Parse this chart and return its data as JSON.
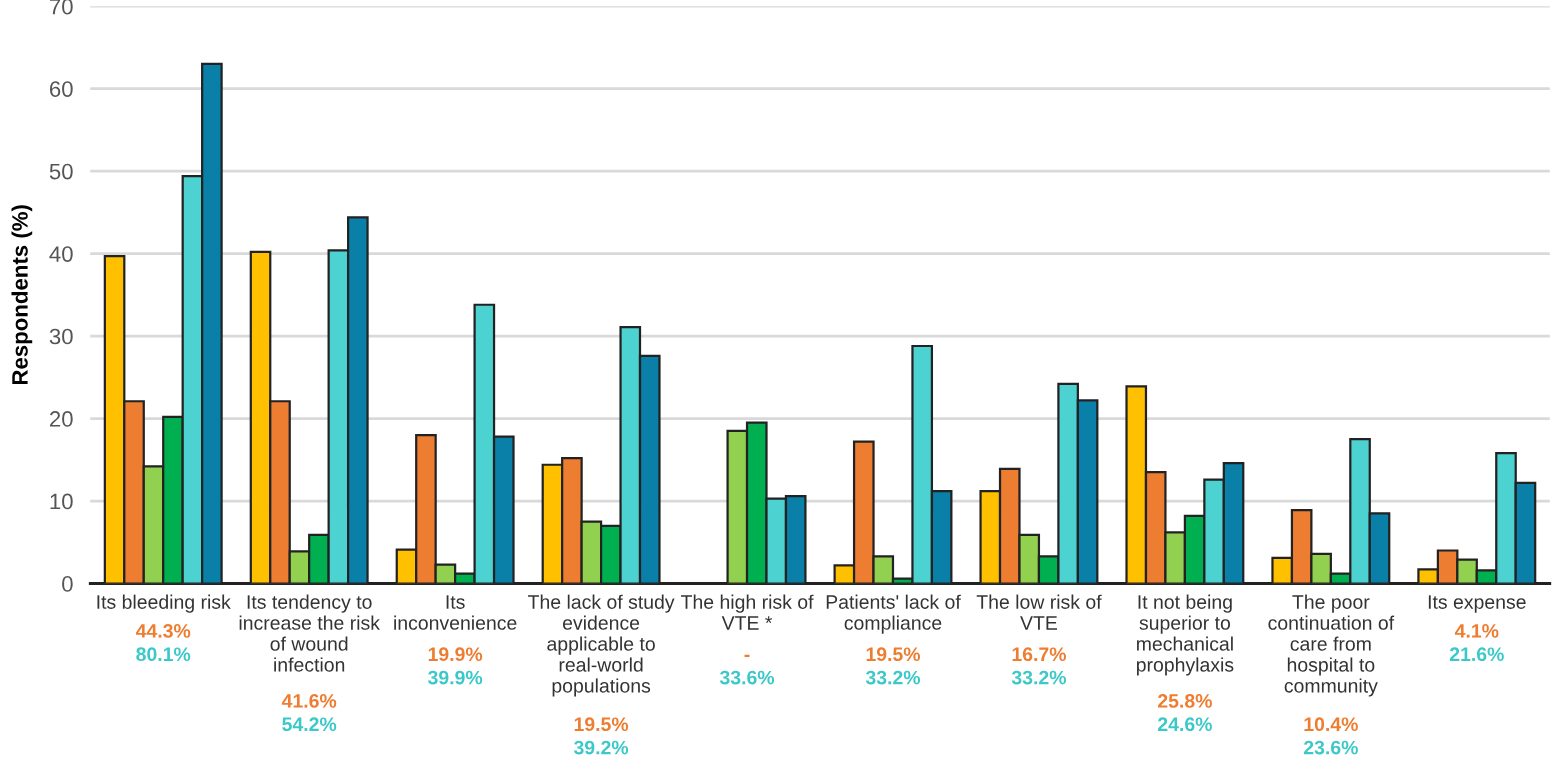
{
  "chart_data": {
    "type": "bar",
    "ylabel": "Respondents (%)",
    "categories": [
      "Its bleeding risk",
      "Its tendency to\nincrease the risk\nof wound\ninfection",
      "Its\ninconvenience",
      "The lack of study\nevidence\napplicable to\nreal-world\npopulations",
      "The high risk of\nVTE *",
      "Patients' lack of\ncompliance",
      "The low risk of\nVTE",
      "It not being\nsuperior to\nmechanical\nprophylaxis",
      "The poor\ncontinuation of\ncare from\nhospital to\ncommunity",
      "Its expense"
    ],
    "series": [
      {
        "color": "#ffc000",
        "values": [
          39.7,
          40.2,
          4.1,
          14.4,
          null,
          2.2,
          11.2,
          23.9,
          3.1,
          1.7
        ]
      },
      {
        "color": "#ed7d31",
        "values": [
          22.1,
          22.1,
          18.0,
          15.2,
          null,
          17.2,
          13.9,
          13.5,
          8.9,
          4.0
        ]
      },
      {
        "color": "#92d050",
        "values": [
          14.2,
          3.9,
          2.3,
          7.5,
          18.5,
          3.3,
          5.9,
          6.2,
          3.6,
          2.9
        ]
      },
      {
        "color": "#00b050",
        "values": [
          20.2,
          5.9,
          1.2,
          7.0,
          19.5,
          0.6,
          3.3,
          8.2,
          1.2,
          1.6
        ]
      },
      {
        "color": "#4dd2d2",
        "values": [
          49.4,
          40.4,
          33.8,
          31.1,
          10.3,
          28.8,
          24.2,
          12.6,
          17.5,
          15.8
        ]
      },
      {
        "color": "#0a7fa8",
        "values": [
          63.0,
          44.4,
          17.8,
          27.6,
          10.6,
          11.2,
          22.2,
          14.6,
          8.5,
          12.2
        ]
      }
    ],
    "annotations": [
      "44.3%",
      "80.1%",
      "41.6%",
      "54.2%",
      "19.9%",
      "39.9%",
      "19.5%",
      "39.2%",
      "-",
      "33.6%",
      "19.5%",
      "33.2%",
      "16.7%",
      "33.2%",
      "25.8%",
      "24.6%",
      "10.4%",
      "23.6%",
      "4.1%",
      "21.6%"
    ],
    "ylim": [
      0,
      70
    ],
    "yticks": [
      0,
      10,
      20,
      30,
      40,
      50,
      60,
      70
    ],
    "grid": "y"
  }
}
